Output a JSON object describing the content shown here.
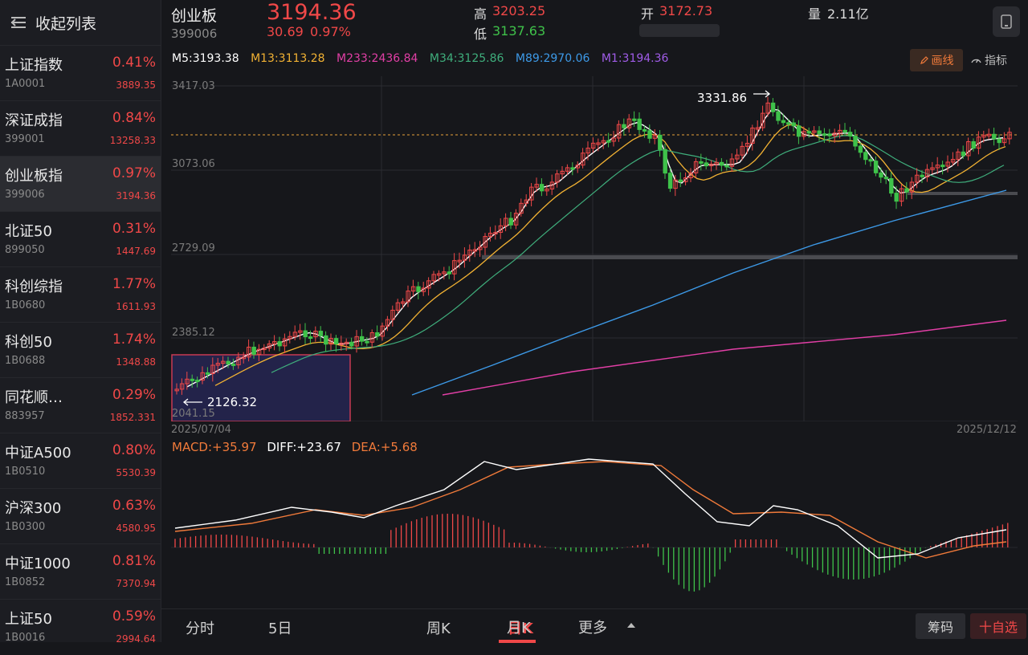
{
  "sidebar": {
    "collapse_label": "收起列表",
    "items": [
      {
        "name": "上证指数",
        "code": "1A0001",
        "pct": "0.41%",
        "price": "3889.35"
      },
      {
        "name": "深证成指",
        "code": "399001",
        "pct": "0.84%",
        "price": "13258.33"
      },
      {
        "name": "创业板指",
        "code": "399006",
        "pct": "0.97%",
        "price": "3194.36"
      },
      {
        "name": "北证50",
        "code": "899050",
        "pct": "0.31%",
        "price": "1447.69"
      },
      {
        "name": "科创综指",
        "code": "1B0680",
        "pct": "1.77%",
        "price": "1611.93"
      },
      {
        "name": "科创50",
        "code": "1B0688",
        "pct": "1.74%",
        "price": "1348.88"
      },
      {
        "name": "同花顺…",
        "code": "883957",
        "pct": "0.29%",
        "price": "1852.331"
      },
      {
        "name": "中证A500",
        "code": "1B0510",
        "pct": "0.80%",
        "price": "5530.39"
      },
      {
        "name": "沪深300",
        "code": "1B0300",
        "pct": "0.63%",
        "price": "4580.95"
      },
      {
        "name": "中证1000",
        "code": "1B0852",
        "pct": "0.81%",
        "price": "7370.94"
      },
      {
        "name": "上证50",
        "code": "1B0016",
        "pct": "0.59%",
        "price": "2994.64"
      }
    ]
  },
  "quote": {
    "name": "创业板",
    "code": "399006",
    "price": "3194.36",
    "change": "30.69",
    "change_pct": "0.97%",
    "high_label": "高",
    "high": "3203.25",
    "low_label": "低",
    "low": "3137.63",
    "open_label": "开",
    "open": "3172.73",
    "volume_label": "量",
    "volume": "2.11亿"
  },
  "ma": [
    {
      "label": "M5:3193.38",
      "color": "#ffffff"
    },
    {
      "label": "M13:3113.28",
      "color": "#f2b233"
    },
    {
      "label": "M233:2436.84",
      "color": "#e23fa6"
    },
    {
      "label": "M34:3125.86",
      "color": "#3fae7c"
    },
    {
      "label": "M89:2970.06",
      "color": "#3d9ae8"
    },
    {
      "label": "M1:3194.36",
      "color": "#a05ce8"
    }
  ],
  "toolbar": {
    "draw_label": "画线",
    "indicator_label": "指标"
  },
  "chart": {
    "y_ticks": [
      "3417.03",
      "3073.06",
      "2729.09",
      "2385.12",
      "2041.15"
    ],
    "x_start": "2025/07/04",
    "x_end": "2025/12/12",
    "high_annot": "3331.86",
    "low_annot": "2126.32"
  },
  "macd": {
    "macd": "MACD:+35.97",
    "diff": "DIFF:+23.67",
    "dea": "DEA:+5.68"
  },
  "tabs": [
    "分时",
    "5日",
    "日K",
    "周K",
    "月K",
    "更多"
  ],
  "bottom": {
    "chip_label": "筹码",
    "fav_label": "十自选"
  },
  "colors": {
    "up": "#f04848",
    "down": "#3fc24a",
    "accent": "#f07a3a"
  }
}
